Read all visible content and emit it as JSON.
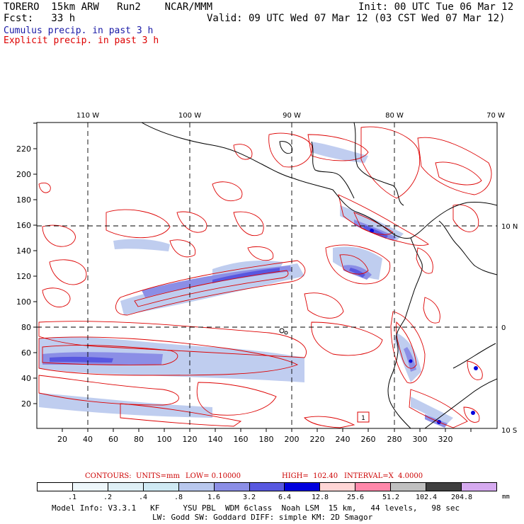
{
  "header": {
    "model": "TORERO  15km ARW   Run2    NCAR/MMM",
    "init": "Init: 00 UTC Tue 06 Mar 12",
    "fcst": "Fcst:   33 h",
    "valid": "Valid: 09 UTC Wed 07 Mar 12 (03 CST Wed 07 Mar 12)",
    "legend_cumulus": "Cumulus precip. in past 3 h",
    "legend_explicit": "Explicit precip. in past 3 h"
  },
  "colors": {
    "cumulus": "#1a1aa6",
    "explicit": "#dd0000",
    "coast": "#000000"
  },
  "map": {
    "x_ticks": [
      "20",
      "40",
      "60",
      "80",
      "100",
      "120",
      "140",
      "160",
      "180",
      "200",
      "220",
      "240",
      "260",
      "280",
      "300",
      "320"
    ],
    "y_ticks": [
      "20",
      "40",
      "60",
      "80",
      "100",
      "120",
      "140",
      "160",
      "180",
      "200",
      "220"
    ],
    "lon_labels": [
      "110 W",
      "100 W",
      "90 W",
      "80 W",
      "70 W"
    ],
    "lat_labels": [
      "10 N",
      "0",
      "10 S"
    ],
    "station_label": "1",
    "icons": [
      "coastline-icon",
      "grid-lines-icon",
      "precip-shading-icon",
      "contour-lines-icon"
    ]
  },
  "contours": {
    "title": "CONTOURS:  UNITS=mm",
    "low": "LOW= 0.10000",
    "high": "HIGH=  102.40",
    "interval": "INTERVAL=X  4.0000"
  },
  "colorbar": {
    "unit": "mm",
    "labels": [
      ".1",
      ".2",
      ".4",
      ".8",
      "1.6",
      "3.2",
      "6.4",
      "12.8",
      "25.6",
      "51.2",
      "102.4",
      "204.8"
    ],
    "colors": [
      "#ffffff",
      "#eef7fb",
      "#dff0f6",
      "#cfe9f3",
      "#b9c8ee",
      "#8b8ee6",
      "#5858e0",
      "#0000dd",
      "#ffd6d6",
      "#ff88aa",
      "#c0c0c0",
      "#404040",
      "#d6aaf0"
    ]
  },
  "model_info": {
    "line1": "Model Info: V3.3.1   KF     YSU PBL  WDM 6class  Noah LSM  15 km,   44 levels,   98 sec",
    "line2": "LW: Godd SW: Goddard DIFF: simple KM: 2D Smagor"
  }
}
